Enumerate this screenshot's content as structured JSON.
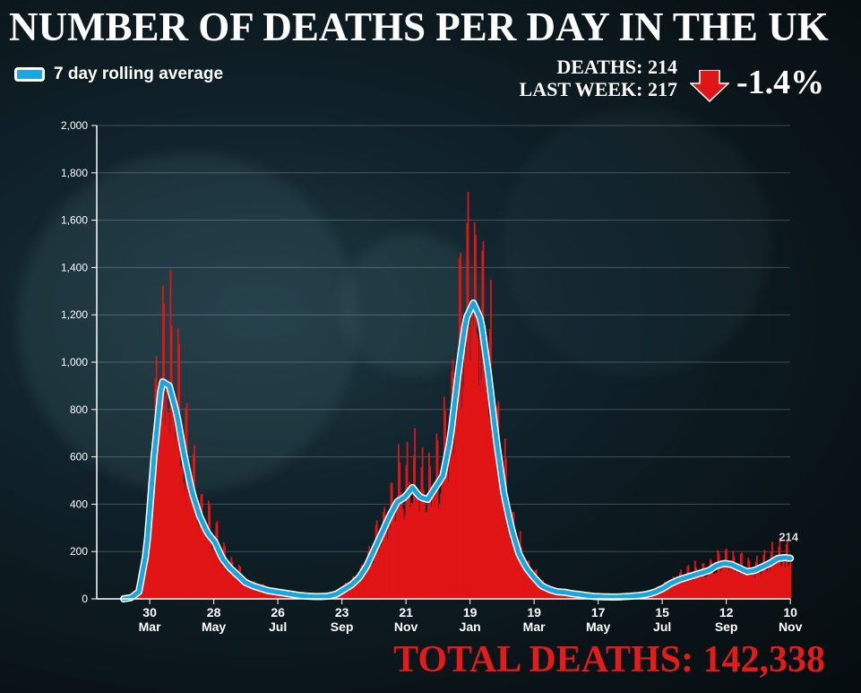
{
  "header": {
    "title": "NUMBER OF DEATHS PER DAY IN THE UK",
    "deaths_label": "DEATHS: 214",
    "last_week_label": "LAST WEEK: 217",
    "change": "-1.4%",
    "total": "TOTAL DEATHS: 142,338"
  },
  "colors": {
    "bars": "#e01515",
    "line": "#1aa6df",
    "total": "#e41b1b",
    "arrow": "#e01515"
  },
  "chart_data": {
    "type": "bar",
    "title": "NUMBER OF DEATHS PER DAY IN THE UK",
    "xlabel": "",
    "ylabel": "",
    "ylim": [
      0,
      2000
    ],
    "yticks": [
      "0",
      "200",
      "400",
      "600",
      "800",
      "1,000",
      "1,200",
      "1,400",
      "1,600",
      "1,800",
      "2,000"
    ],
    "xticks": [
      {
        "day": [
          "30",
          "Mar"
        ]
      },
      {
        "day": [
          "28",
          "May"
        ]
      },
      {
        "day": [
          "26",
          "Jul"
        ]
      },
      {
        "day": [
          "23",
          "Sep"
        ]
      },
      {
        "day": [
          "21",
          "Nov"
        ]
      },
      {
        "day": [
          "19",
          "Jan"
        ]
      },
      {
        "day": [
          "19",
          "Mar"
        ]
      },
      {
        "day": [
          "17",
          "May"
        ]
      },
      {
        "day": [
          "15",
          "Jul"
        ]
      },
      {
        "day": [
          "12",
          "Sep"
        ]
      },
      {
        "day": [
          "10",
          "Nov"
        ]
      }
    ],
    "xtick_days_from_start": [
      24,
      83,
      142,
      201,
      260,
      319,
      378,
      437,
      496,
      555,
      614
    ],
    "start_date": "2020-03-06",
    "grid": true,
    "legend": {
      "label": "7 day rolling average",
      "position": "top-left"
    },
    "series": [
      {
        "name": "7 day rolling average",
        "type": "line",
        "step_days": 7,
        "values": [
          0,
          5,
          30,
          200,
          600,
          920,
          900,
          780,
          600,
          450,
          350,
          280,
          240,
          170,
          130,
          100,
          70,
          55,
          45,
          35,
          30,
          25,
          20,
          15,
          12,
          10,
          10,
          12,
          20,
          40,
          60,
          90,
          140,
          210,
          280,
          350,
          410,
          430,
          470,
          430,
          420,
          470,
          520,
          680,
          950,
          1180,
          1250,
          1180,
          950,
          680,
          450,
          300,
          190,
          130,
          90,
          55,
          40,
          30,
          28,
          22,
          18,
          14,
          10,
          9,
          8,
          8,
          10,
          12,
          15,
          20,
          30,
          45,
          65,
          80,
          90,
          100,
          110,
          120,
          140,
          150,
          145,
          130,
          115,
          120,
          135,
          150,
          170,
          175,
          170
        ]
      },
      {
        "name": "Daily deaths",
        "type": "bar"
      }
    ],
    "annotations": [
      {
        "label": "214"
      }
    ]
  }
}
